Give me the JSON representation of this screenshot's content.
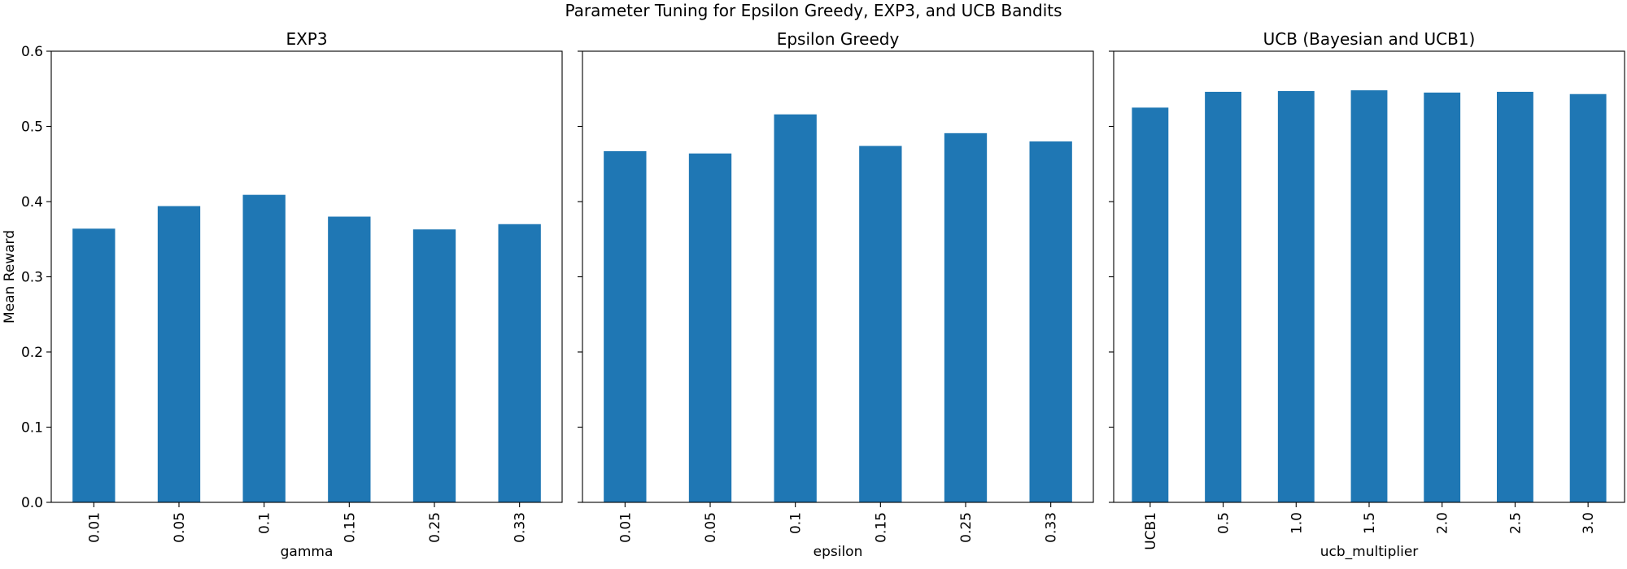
{
  "title": "Parameter Tuning for Epsilon Greedy, EXP3, and UCB Bandits",
  "bar_color": "#1f77b4",
  "chart_data": [
    {
      "type": "bar",
      "title": "EXP3",
      "xlabel": "gamma",
      "ylabel": "Mean Reward",
      "ylim": [
        0,
        0.6
      ],
      "yticks": [
        "0.0",
        "0.1",
        "0.2",
        "0.3",
        "0.4",
        "0.5",
        "0.6"
      ],
      "categories": [
        "0.01",
        "0.05",
        "0.1",
        "0.15",
        "0.25",
        "0.33"
      ],
      "values": [
        0.364,
        0.394,
        0.409,
        0.38,
        0.363,
        0.37
      ],
      "grid": false,
      "legend": false
    },
    {
      "type": "bar",
      "title": "Epsilon Greedy",
      "xlabel": "epsilon",
      "ylabel": "",
      "ylim": [
        0,
        0.6
      ],
      "categories": [
        "0.01",
        "0.05",
        "0.1",
        "0.15",
        "0.25",
        "0.33"
      ],
      "values": [
        0.467,
        0.464,
        0.516,
        0.474,
        0.491,
        0.48
      ],
      "grid": false,
      "legend": false
    },
    {
      "type": "bar",
      "title": "UCB (Bayesian and UCB1)",
      "xlabel": "ucb_multiplier",
      "ylabel": "",
      "ylim": [
        0,
        0.6
      ],
      "categories": [
        "UCB1",
        "0.5",
        "1.0",
        "1.5",
        "2.0",
        "2.5",
        "3.0"
      ],
      "values": [
        0.525,
        0.546,
        0.547,
        0.548,
        0.545,
        0.546,
        0.543
      ],
      "grid": false,
      "legend": false
    }
  ]
}
